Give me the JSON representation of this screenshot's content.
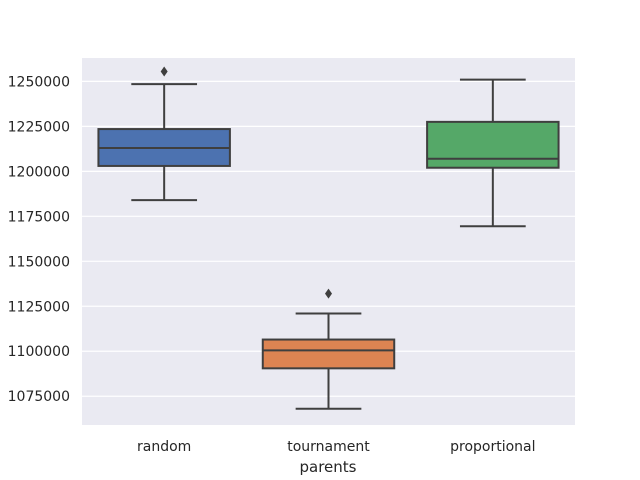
{
  "chart_data": {
    "type": "box",
    "title": "",
    "xlabel": "parents",
    "ylabel": "",
    "ylim": [
      1059000,
      1263000
    ],
    "yticks": [
      1075000,
      1100000,
      1125000,
      1150000,
      1175000,
      1200000,
      1225000,
      1250000
    ],
    "grid": true,
    "categories": [
      "random",
      "tournament",
      "proportional"
    ],
    "boxes": [
      {
        "category": "random",
        "color": "#4c72b0",
        "whisker_low": 1184000,
        "q1": 1203000,
        "median": 1213000,
        "q3": 1223500,
        "whisker_high": 1248500,
        "outliers": [
          1255500
        ]
      },
      {
        "category": "tournament",
        "color": "#dd8452",
        "whisker_low": 1068000,
        "q1": 1090500,
        "median": 1100500,
        "q3": 1106500,
        "whisker_high": 1121000,
        "outliers": [
          1132000
        ]
      },
      {
        "category": "proportional",
        "color": "#55a868",
        "whisker_low": 1169500,
        "q1": 1202000,
        "median": 1207000,
        "q3": 1227500,
        "whisker_high": 1251000,
        "outliers": []
      }
    ]
  }
}
